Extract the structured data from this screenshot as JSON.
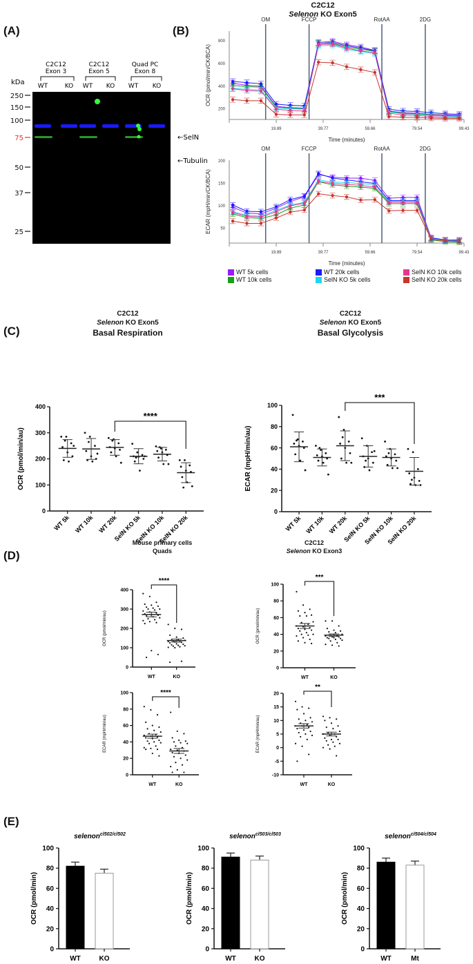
{
  "panels": {
    "A": "(A)",
    "B": "(B)",
    "C": "(C)",
    "D": "(D)",
    "E": "(E)"
  },
  "western_blot": {
    "kda_label": "kDa",
    "markers": [
      "250",
      "150",
      "100",
      "75",
      "50",
      "37",
      "25"
    ],
    "marker_highlight": "75",
    "marker_highlight_color": "#e8322e",
    "groups": [
      {
        "line1": "C2C12",
        "line2": "Exon 3",
        "lanes": [
          "WT",
          "KO"
        ]
      },
      {
        "line1": "C2C12",
        "line2": "Exon 5",
        "lanes": [
          "WT",
          "KO"
        ]
      },
      {
        "line1": "Quad PC",
        "line2": "Exon 8",
        "lanes": [
          "WT",
          "KO"
        ]
      }
    ],
    "band_labels": [
      "SelN",
      "Tubulin"
    ],
    "selN_present": [
      true,
      false,
      true,
      false,
      true,
      false
    ],
    "colors": {
      "selN": "#2fbf2f",
      "tubulin": "#1a1aff",
      "background": "#000000"
    }
  },
  "chart_data": [
    {
      "id": "B-OCR",
      "type": "line",
      "title": "C2C12",
      "subtitle_italic": "Selenon",
      "subtitle_rest": " KO Exon5",
      "xlabel": "Time (minutes)",
      "ylabel": "OCR (pmol/min/CK/BCA)",
      "x_ticks": [
        "19.89",
        "39.77",
        "59.66",
        "79.54",
        "99.43"
      ],
      "y_ticks": [
        200,
        400,
        600,
        800
      ],
      "ylim": [
        100,
        880
      ],
      "xlim": [
        0,
        100
      ],
      "injections": [
        {
          "label": "OM",
          "x": 15.5
        },
        {
          "label": "FCCP",
          "x": 34
        },
        {
          "label": "RotAA",
          "x": 65
        },
        {
          "label": "2DG",
          "x": 83.5
        }
      ],
      "x": [
        1.5,
        7.5,
        13.5,
        20,
        26,
        32,
        38,
        44,
        50,
        56,
        62,
        68,
        74,
        80,
        86,
        92,
        98
      ],
      "series": [
        {
          "name": "WT 5k cells",
          "color": "#9b1aff",
          "values": [
            420,
            400,
            395,
            215,
            205,
            200,
            780,
            790,
            760,
            740,
            710,
            175,
            160,
            155,
            145,
            140,
            135
          ]
        },
        {
          "name": "WT 10k cells",
          "color": "#16a016",
          "values": [
            400,
            390,
            385,
            210,
            200,
            195,
            775,
            770,
            740,
            720,
            700,
            170,
            155,
            150,
            140,
            135,
            130
          ]
        },
        {
          "name": "WT 20k cells",
          "color": "#1a1aff",
          "values": [
            435,
            425,
            415,
            235,
            225,
            220,
            770,
            780,
            750,
            730,
            705,
            190,
            175,
            170,
            160,
            150,
            145
          ]
        },
        {
          "name": "SelN KO 5k cells",
          "color": "#19d7f5",
          "values": [
            375,
            365,
            360,
            200,
            195,
            190,
            750,
            755,
            720,
            700,
            680,
            165,
            150,
            145,
            135,
            130,
            125
          ]
        },
        {
          "name": "SelN KO 10k cells",
          "color": "#e8368f",
          "values": [
            370,
            355,
            350,
            190,
            180,
            175,
            760,
            765,
            730,
            705,
            690,
            155,
            140,
            135,
            125,
            120,
            118
          ]
        },
        {
          "name": "SelN KO 20k cells",
          "color": "#c8352e",
          "values": [
            275,
            265,
            265,
            145,
            140,
            140,
            605,
            600,
            565,
            540,
            515,
            125,
            120,
            118,
            112,
            110,
            110
          ]
        }
      ]
    },
    {
      "id": "B-ECAR",
      "type": "line",
      "xlabel": "Time (minutes)",
      "ylabel": "ECAR (mpH/min/CK/BCA)",
      "x_ticks": [
        "19.89",
        "39.77",
        "59.66",
        "79.54",
        "99.43"
      ],
      "y_ticks": [
        50,
        100,
        150,
        200
      ],
      "ylim": [
        15,
        200
      ],
      "xlim": [
        0,
        100
      ],
      "injections": [
        {
          "label": "OM",
          "x": 15.5
        },
        {
          "label": "FCCP",
          "x": 34
        },
        {
          "label": "RotAA",
          "x": 65
        },
        {
          "label": "2DG",
          "x": 83.5
        }
      ],
      "x": [
        1.5,
        7.5,
        13.5,
        20,
        26,
        32,
        38,
        44,
        50,
        56,
        62,
        68,
        74,
        80,
        86,
        92,
        98
      ],
      "series": [
        {
          "name": "WT 5k cells",
          "color": "#9b1aff",
          "values": [
            95,
            82,
            80,
            93,
            108,
            118,
            168,
            162,
            160,
            160,
            155,
            115,
            117,
            117,
            26,
            22,
            20
          ]
        },
        {
          "name": "WT 10k cells",
          "color": "#16a016",
          "values": [
            80,
            72,
            70,
            78,
            93,
            100,
            152,
            145,
            142,
            140,
            137,
            103,
            103,
            103,
            22,
            18,
            17
          ]
        },
        {
          "name": "WT 20k cells",
          "color": "#1a1aff",
          "values": [
            100,
            86,
            85,
            96,
            112,
            120,
            170,
            160,
            156,
            152,
            148,
            110,
            110,
            110,
            27,
            22,
            22
          ]
        },
        {
          "name": "SelN KO 5k cells",
          "color": "#19d7f5",
          "values": [
            85,
            77,
            75,
            88,
            100,
            106,
            156,
            151,
            150,
            148,
            145,
            108,
            108,
            108,
            25,
            21,
            20
          ]
        },
        {
          "name": "SelN KO 10k cells",
          "color": "#e8368f",
          "values": [
            83,
            75,
            73,
            85,
            98,
            104,
            153,
            148,
            146,
            144,
            140,
            106,
            106,
            106,
            24,
            20,
            19
          ]
        },
        {
          "name": "SelN KO 20k cells",
          "color": "#c8352e",
          "values": [
            64,
            59,
            59,
            71,
            84,
            89,
            125,
            121,
            118,
            111,
            112,
            87,
            88,
            88,
            24,
            20,
            19
          ]
        }
      ]
    },
    {
      "id": "C-OCR",
      "type": "scatter",
      "title": "C2C12",
      "subtitle_italic": "Selenon",
      "subtitle_rest": " KO Exon5",
      "heading": "Basal Respiration",
      "ylabel": "OCR (pmol/min/au)",
      "ylim": [
        0,
        400
      ],
      "y_ticks": [
        0,
        100,
        200,
        300,
        400
      ],
      "categories": [
        "WT 5k",
        "WT 10k",
        "WT 20k",
        "SelN KO 5k",
        "SelN KO 10k",
        "SelN KO 20k"
      ],
      "means": [
        240,
        238,
        244,
        210,
        218,
        147
      ],
      "sd": [
        34,
        40,
        30,
        29,
        26,
        38
      ],
      "points": [
        [
          285,
          285,
          260,
          245,
          225,
          210,
          195,
          190,
          250,
          270
        ],
        [
          300,
          285,
          250,
          230,
          210,
          200,
          195,
          190,
          220,
          265
        ],
        [
          280,
          275,
          260,
          245,
          240,
          235,
          225,
          210,
          185,
          270
        ],
        [
          258,
          225,
          215,
          210,
          208,
          200,
          190,
          155,
          210,
          205
        ],
        [
          248,
          240,
          235,
          230,
          225,
          215,
          205,
          180,
          180,
          245
        ],
        [
          195,
          195,
          175,
          170,
          155,
          150,
          130,
          110,
          95,
          90
        ]
      ],
      "significance": {
        "from": 2,
        "to": 5,
        "label": "****"
      }
    },
    {
      "id": "C-ECAR",
      "type": "scatter",
      "title": "C2C12",
      "subtitle_italic": "Selenon",
      "subtitle_rest": " KO Exon5",
      "heading": "Basal Glycolysis",
      "ylabel": "ECAR (mpH/min/au)",
      "ylim": [
        0,
        100
      ],
      "y_ticks": [
        0,
        20,
        40,
        60,
        80,
        100
      ],
      "categories": [
        "WT 5k",
        "WT 10k",
        "WT 20k",
        "SelN KO 5k",
        "SelN KO 10k",
        "SelN KO 20k"
      ],
      "means": [
        61,
        51,
        62,
        52,
        51,
        38
      ],
      "sd": [
        14,
        8,
        14,
        10,
        8,
        13
      ],
      "points": [
        [
          91,
          68,
          66,
          64,
          62,
          60,
          54,
          48,
          39,
          67
        ],
        [
          62,
          58,
          55,
          53,
          52,
          50,
          48,
          46,
          35,
          60
        ],
        [
          89,
          77,
          66,
          64,
          60,
          55,
          50,
          46,
          46,
          70
        ],
        [
          69,
          62,
          56,
          52,
          50,
          46,
          42,
          39,
          57,
          48
        ],
        [
          66,
          59,
          54,
          52,
          50,
          48,
          44,
          41,
          41,
          55
        ],
        [
          59,
          56,
          40,
          36,
          32,
          29,
          26,
          25,
          25,
          30
        ]
      ],
      "significance": {
        "from": 2,
        "to": 5,
        "label": "***"
      }
    },
    {
      "id": "D-quad-OCR",
      "type": "scatter",
      "title": "Mouse primary cells",
      "subtitle": "Quads",
      "ylabel": "OCR (pmol/min/au)",
      "ylim": [
        0,
        400
      ],
      "y_ticks": [
        0,
        100,
        200,
        300,
        400
      ],
      "categories": [
        "WT",
        "KO"
      ],
      "means": [
        272,
        137
      ],
      "sem": [
        12,
        8
      ],
      "points": [
        [
          380,
          365,
          335,
          325,
          320,
          315,
          310,
          305,
          300,
          300,
          295,
          290,
          285,
          280,
          275,
          270,
          268,
          265,
          260,
          255,
          250,
          245,
          240,
          235,
          230,
          225,
          85,
          65,
          50
        ],
        [
          220,
          200,
          195,
          165,
          155,
          150,
          140,
          140,
          138,
          135,
          135,
          132,
          130,
          128,
          125,
          120,
          118,
          115,
          112,
          110,
          108,
          105,
          102,
          100,
          30,
          25
        ]
      ],
      "significance": {
        "from": 0,
        "to": 1,
        "label": "****"
      }
    },
    {
      "id": "D-c2c12-OCR",
      "type": "scatter",
      "title": "C2C12",
      "subtitle_italic": "Selenon",
      "subtitle_rest": " KO Exon3",
      "ylabel": "OCR (pmol/min/au)",
      "ylim": [
        0,
        100
      ],
      "y_ticks": [
        0,
        20,
        40,
        60,
        80,
        100
      ],
      "categories": [
        "WT",
        "KO"
      ],
      "means": [
        50,
        39
      ],
      "sem": [
        3,
        1.5
      ],
      "points": [
        [
          91,
          75,
          70,
          68,
          66,
          63,
          62,
          62,
          55,
          54,
          52,
          50,
          49,
          48,
          47,
          46,
          45,
          44,
          42,
          40,
          40,
          39,
          38,
          36,
          34,
          32,
          30,
          29
        ],
        [
          56,
          56,
          50,
          47,
          45,
          44,
          43,
          42,
          40,
          39,
          38,
          38,
          37,
          37,
          36,
          36,
          35,
          35,
          34,
          33,
          32,
          30,
          28,
          27,
          26
        ]
      ],
      "significance": {
        "from": 0,
        "to": 1,
        "label": "***"
      }
    },
    {
      "id": "D-quad-ECAR",
      "type": "scatter",
      "ylabel": "ECAR (mpH/min/au)",
      "ylim": [
        0,
        100
      ],
      "y_ticks": [
        0,
        20,
        40,
        60,
        80,
        100
      ],
      "categories": [
        "WT",
        "KO"
      ],
      "means": [
        47,
        29
      ],
      "sem": [
        2.5,
        3
      ],
      "points": [
        [
          83,
          79,
          73,
          64,
          60,
          58,
          56,
          54,
          52,
          50,
          49,
          48,
          47,
          46,
          45,
          44,
          42,
          41,
          40,
          39,
          38,
          35,
          33,
          32,
          31,
          31,
          26,
          23
        ],
        [
          76,
          53,
          50,
          45,
          42,
          41,
          40,
          39,
          38,
          35,
          33,
          31,
          30,
          29,
          27,
          26,
          24,
          22,
          20,
          18,
          15,
          12,
          10,
          6,
          3,
          3
        ]
      ],
      "significance": {
        "from": 0,
        "to": 1,
        "label": "****"
      }
    },
    {
      "id": "D-c2c12-ECAR",
      "type": "scatter",
      "ylabel": "ECAR (mpH/min/au)",
      "ylim": [
        -10,
        20
      ],
      "y_ticks": [
        -10,
        -5,
        0,
        5,
        10,
        15,
        20
      ],
      "categories": [
        "WT",
        "KO"
      ],
      "means": [
        8,
        5
      ],
      "sem": [
        0.8,
        0.7
      ],
      "points": [
        [
          17,
          15,
          14.5,
          14,
          12.5,
          11,
          10.5,
          10,
          9.5,
          9,
          8.5,
          8,
          8,
          7.5,
          7,
          6.5,
          6,
          5.5,
          5,
          4.5,
          4,
          3,
          1.5,
          0.5,
          -2.5,
          -5
        ],
        [
          11.5,
          11,
          10.5,
          10,
          9,
          8,
          7.5,
          7,
          6,
          5.5,
          5,
          5,
          4.5,
          4,
          3.5,
          3,
          3,
          2.5,
          2,
          1.5,
          1,
          0.5,
          0,
          -0.5,
          -3
        ]
      ],
      "significance": {
        "from": 0,
        "to": 1,
        "label": "**"
      }
    },
    {
      "id": "E-cl502",
      "type": "bar",
      "title_base": "selenon",
      "title_sup": "cl502/cl502",
      "ylabel": "OCR (pmol/min)",
      "ylim": [
        0,
        100
      ],
      "y_ticks": [
        0,
        20,
        40,
        60,
        80,
        100
      ],
      "categories": [
        "WT",
        "KO"
      ],
      "values": [
        82,
        75
      ],
      "errors": [
        4,
        4
      ],
      "fills": [
        "#000000",
        "#ffffff"
      ]
    },
    {
      "id": "E-cl503",
      "type": "bar",
      "title_base": "selenon",
      "title_sup": "cl503/cl503",
      "ylabel": "OCR (pmol/min)",
      "ylim": [
        0,
        100
      ],
      "y_ticks": [
        0,
        20,
        40,
        60,
        80,
        100
      ],
      "categories": [
        "WT",
        "KO"
      ],
      "values": [
        91,
        88
      ],
      "errors": [
        4,
        4
      ],
      "fills": [
        "#000000",
        "#ffffff"
      ]
    },
    {
      "id": "E-cl504",
      "type": "bar",
      "title_base": "selenon",
      "title_sup": "cl504/cl504",
      "ylabel": "OCR (pmol/min)",
      "ylim": [
        0,
        100
      ],
      "y_ticks": [
        0,
        20,
        40,
        60,
        80,
        100
      ],
      "categories": [
        "WT",
        "Mt"
      ],
      "values": [
        86,
        83
      ],
      "errors": [
        4,
        4
      ],
      "fills": [
        "#000000",
        "#ffffff"
      ]
    }
  ],
  "legend_B": [
    {
      "name": "WT 5k cells",
      "color": "#9b1aff"
    },
    {
      "name": "WT 20k cells",
      "color": "#1a1aff"
    },
    {
      "name": "SelN KO 10k cells",
      "color": "#e8368f"
    },
    {
      "name": "WT 10k cells",
      "color": "#16a016"
    },
    {
      "name": "SelN KO 5k cells",
      "color": "#19d7f5"
    },
    {
      "name": "SelN KO 20k cells",
      "color": "#c8352e"
    }
  ]
}
